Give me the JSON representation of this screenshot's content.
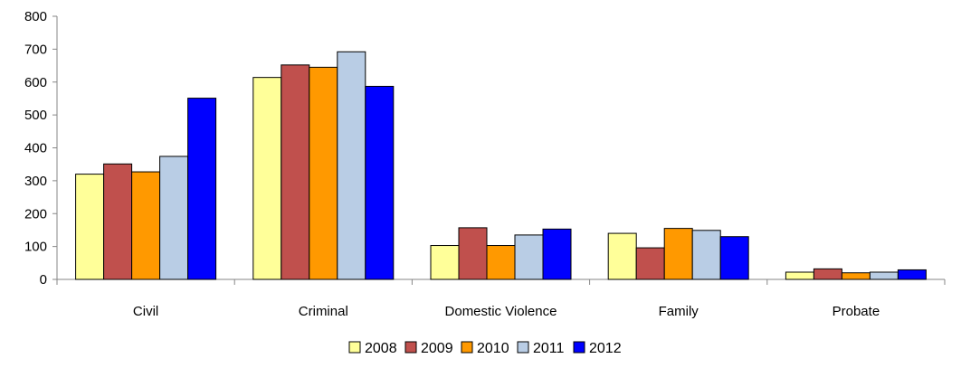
{
  "chart_data": {
    "type": "bar",
    "categories": [
      "Civil",
      "Criminal",
      "Domestic Violence",
      "Family",
      "Probate"
    ],
    "series": [
      {
        "name": "2008",
        "color": "#FFFF99",
        "values": [
          320,
          614,
          103,
          140,
          22
        ]
      },
      {
        "name": "2009",
        "color": "#C0504D",
        "values": [
          351,
          652,
          157,
          96,
          32
        ]
      },
      {
        "name": "2010",
        "color": "#FF9900",
        "values": [
          327,
          645,
          103,
          155,
          20
        ]
      },
      {
        "name": "2011",
        "color": "#B9CDE5",
        "values": [
          374,
          692,
          135,
          149,
          22
        ]
      },
      {
        "name": "2012",
        "color": "#0000FF",
        "values": [
          551,
          587,
          153,
          130,
          29
        ]
      }
    ],
    "yticks": [
      0,
      100,
      200,
      300,
      400,
      500,
      600,
      700,
      800
    ],
    "ylim": [
      0,
      800
    ],
    "title": "",
    "xlabel": "",
    "ylabel": "",
    "grid": false,
    "legend": "bottom"
  }
}
